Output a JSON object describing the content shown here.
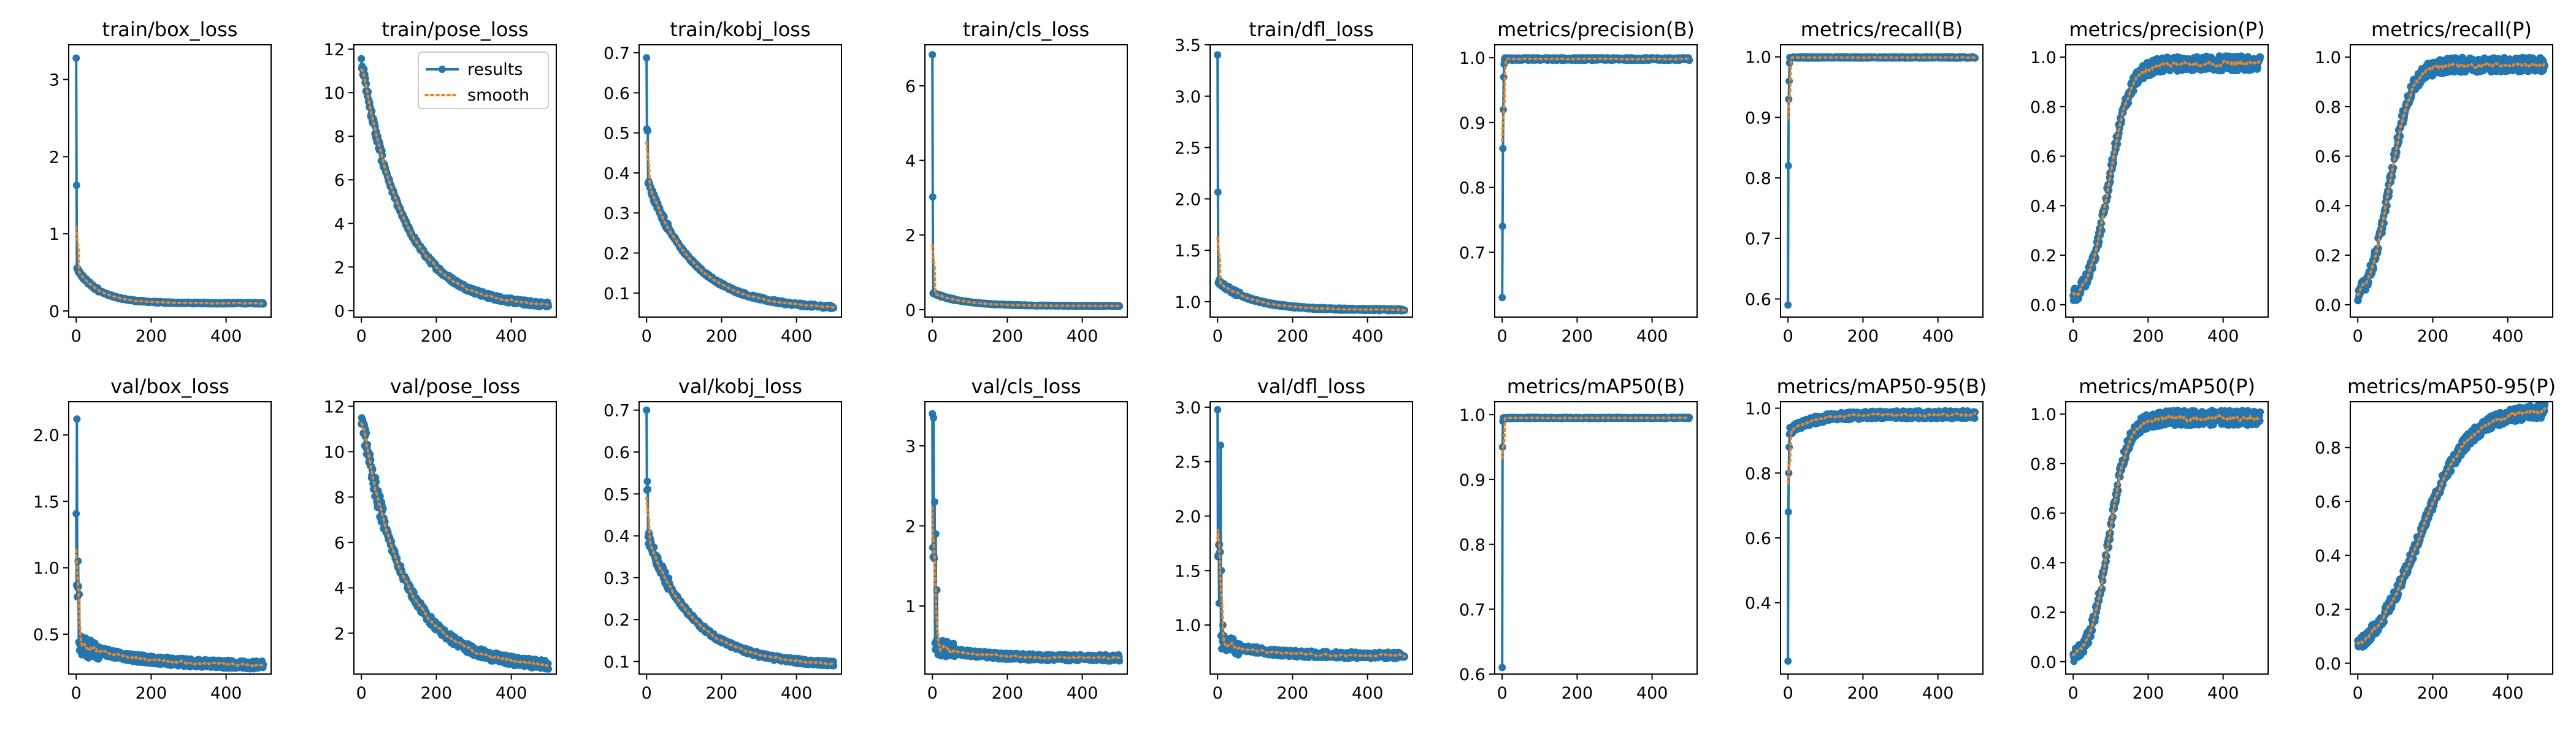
{
  "colors": {
    "results": "#1f77b4",
    "smooth": "#ff7f0e",
    "axis": "#000000",
    "background": "#ffffff"
  },
  "legend": {
    "results_label": "results",
    "smooth_label": "smooth",
    "placement": "upper-right",
    "panel": "train/pose_loss"
  },
  "chart_data": [
    {
      "type": "line",
      "title": "train/box_loss",
      "xlim": [
        -20,
        520
      ],
      "ylim": [
        -0.08,
        3.45
      ],
      "xticks": [
        0,
        200,
        400
      ],
      "yticks": [
        0,
        1,
        2,
        3
      ],
      "curve": {
        "kind": "decay",
        "start": 3.27,
        "spike_until": 1,
        "after": 0.55,
        "end": 0.1,
        "tau": 60,
        "noise": 0.01
      },
      "series": [
        {
          "name": "results"
        },
        {
          "name": "smooth"
        }
      ]
    },
    {
      "type": "line",
      "title": "train/pose_loss",
      "xlim": [
        -20,
        520
      ],
      "ylim": [
        -0.3,
        12.2
      ],
      "xticks": [
        0,
        200,
        400
      ],
      "yticks": [
        0,
        2,
        4,
        6,
        8,
        10,
        12
      ],
      "curve": {
        "kind": "decay",
        "start": 11.5,
        "spike_until": 0,
        "after": 11.5,
        "end": 0.15,
        "tau": 110,
        "noise": 0.12
      },
      "series": [
        {
          "name": "results"
        },
        {
          "name": "smooth"
        }
      ]
    },
    {
      "type": "line",
      "title": "train/kobj_loss",
      "xlim": [
        -20,
        520
      ],
      "ylim": [
        0.04,
        0.72
      ],
      "xticks": [
        0,
        200,
        400
      ],
      "yticks": [
        0.1,
        0.2,
        0.3,
        0.4,
        0.5,
        0.6,
        0.7
      ],
      "curve": {
        "kind": "decay",
        "start": 0.69,
        "spike_until": 3,
        "after": 0.38,
        "end": 0.06,
        "tau": 120,
        "noise": 0.004
      },
      "series": [
        {
          "name": "results"
        },
        {
          "name": "smooth"
        }
      ]
    },
    {
      "type": "line",
      "title": "train/cls_loss",
      "xlim": [
        -20,
        520
      ],
      "ylim": [
        -0.2,
        7.1
      ],
      "xticks": [
        0,
        200,
        400
      ],
      "yticks": [
        0,
        2,
        4,
        6
      ],
      "curve": {
        "kind": "decay",
        "start": 6.85,
        "spike_until": 1,
        "after": 0.45,
        "end": 0.1,
        "tau": 80,
        "noise": 0.01
      },
      "series": [
        {
          "name": "results"
        },
        {
          "name": "smooth"
        }
      ]
    },
    {
      "type": "line",
      "title": "train/dfl_loss",
      "xlim": [
        -20,
        520
      ],
      "ylim": [
        0.85,
        3.5
      ],
      "xticks": [
        0,
        200,
        400
      ],
      "yticks": [
        1.0,
        1.5,
        2.0,
        2.5,
        3.0,
        3.5
      ],
      "curve": {
        "kind": "decay",
        "start": 3.4,
        "spike_until": 1,
        "after": 1.2,
        "end": 0.92,
        "tau": 90,
        "noise": 0.01
      },
      "series": [
        {
          "name": "results"
        },
        {
          "name": "smooth"
        }
      ]
    },
    {
      "type": "line",
      "title": "metrics/precision(B)",
      "xlim": [
        -20,
        520
      ],
      "ylim": [
        0.6,
        1.02
      ],
      "xticks": [
        0,
        200,
        400
      ],
      "yticks": [
        0.7,
        0.8,
        0.9,
        1.0
      ],
      "curve": {
        "kind": "plateau",
        "low": 0.63,
        "level": 0.998,
        "dips": [
          0.63,
          0.74,
          0.86,
          0.92,
          0.97,
          0.99
        ],
        "noise": 0.002
      },
      "series": [
        {
          "name": "results"
        },
        {
          "name": "smooth"
        }
      ]
    },
    {
      "type": "line",
      "title": "metrics/recall(B)",
      "xlim": [
        -20,
        520
      ],
      "ylim": [
        0.57,
        1.02
      ],
      "xticks": [
        0,
        200,
        400
      ],
      "yticks": [
        0.6,
        0.7,
        0.8,
        0.9,
        1.0
      ],
      "curve": {
        "kind": "plateau",
        "low": 0.59,
        "level": 0.999,
        "dips": [
          0.59,
          0.82,
          0.93,
          0.96,
          0.99
        ],
        "noise": 0.001
      },
      "series": [
        {
          "name": "results"
        },
        {
          "name": "smooth"
        }
      ]
    },
    {
      "type": "line",
      "title": "metrics/precision(P)",
      "xlim": [
        -20,
        520
      ],
      "ylim": [
        -0.05,
        1.05
      ],
      "xticks": [
        0,
        200,
        400
      ],
      "yticks": [
        0.0,
        0.2,
        0.4,
        0.6,
        0.8,
        1.0
      ],
      "curve": {
        "kind": "sigmoid",
        "low": 0.0,
        "high": 0.975,
        "mid": 95,
        "width": 28,
        "noise": 0.03
      },
      "series": [
        {
          "name": "results"
        },
        {
          "name": "smooth"
        }
      ]
    },
    {
      "type": "line",
      "title": "metrics/recall(P)",
      "xlim": [
        -20,
        520
      ],
      "ylim": [
        -0.05,
        1.05
      ],
      "xticks": [
        0,
        200,
        400
      ],
      "yticks": [
        0.0,
        0.2,
        0.4,
        0.6,
        0.8,
        1.0
      ],
      "curve": {
        "kind": "sigmoid",
        "low": 0.0,
        "high": 0.97,
        "mid": 85,
        "width": 28,
        "noise": 0.03
      },
      "series": [
        {
          "name": "results"
        },
        {
          "name": "smooth"
        }
      ]
    },
    {
      "type": "line",
      "title": "val/box_loss",
      "xlim": [
        -20,
        520
      ],
      "ylim": [
        0.2,
        2.25
      ],
      "xticks": [
        0,
        200,
        400
      ],
      "yticks": [
        0.5,
        1.0,
        1.5,
        2.0
      ],
      "curve": {
        "kind": "decay",
        "start": 1.4,
        "spike_until": 6,
        "after": 0.42,
        "end": 0.26,
        "tau": 160,
        "noise": 0.03,
        "spikes": [
          [
            2,
            2.12
          ],
          [
            5,
            1.05
          ],
          [
            8,
            0.8
          ]
        ]
      },
      "series": [
        {
          "name": "results"
        },
        {
          "name": "smooth"
        }
      ]
    },
    {
      "type": "line",
      "title": "val/pose_loss",
      "xlim": [
        -20,
        520
      ],
      "ylim": [
        0.2,
        12.2
      ],
      "xticks": [
        0,
        200,
        400
      ],
      "yticks": [
        2,
        4,
        6,
        8,
        10,
        12
      ],
      "curve": {
        "kind": "decay",
        "start": 11.6,
        "spike_until": 0,
        "after": 11.6,
        "end": 0.5,
        "tau": 110,
        "noise": 0.2
      },
      "series": [
        {
          "name": "results"
        },
        {
          "name": "smooth"
        }
      ]
    },
    {
      "type": "line",
      "title": "val/kobj_loss",
      "xlim": [
        -20,
        520
      ],
      "ylim": [
        0.07,
        0.72
      ],
      "xticks": [
        0,
        200,
        400
      ],
      "yticks": [
        0.1,
        0.2,
        0.3,
        0.4,
        0.5,
        0.6,
        0.7
      ],
      "curve": {
        "kind": "decay",
        "start": 0.69,
        "spike_until": 3,
        "after": 0.4,
        "end": 0.09,
        "tau": 120,
        "noise": 0.006
      },
      "series": [
        {
          "name": "results"
        },
        {
          "name": "smooth"
        }
      ]
    },
    {
      "type": "line",
      "title": "val/cls_loss",
      "xlim": [
        -20,
        520
      ],
      "ylim": [
        0.15,
        3.55
      ],
      "xticks": [
        0,
        200,
        400
      ],
      "yticks": [
        1,
        2,
        3
      ],
      "curve": {
        "kind": "decay",
        "start": 3.4,
        "spike_until": 6,
        "after": 0.5,
        "end": 0.35,
        "tau": 100,
        "noise": 0.04,
        "spikes": [
          [
            3,
            3.35
          ],
          [
            6,
            2.3
          ],
          [
            9,
            1.9
          ],
          [
            12,
            1.2
          ]
        ]
      },
      "series": [
        {
          "name": "results"
        },
        {
          "name": "smooth"
        }
      ]
    },
    {
      "type": "line",
      "title": "val/dfl_loss",
      "xlim": [
        -20,
        520
      ],
      "ylim": [
        0.55,
        3.05
      ],
      "xticks": [
        0,
        200,
        400
      ],
      "yticks": [
        1.0,
        1.5,
        2.0,
        2.5,
        3.0
      ],
      "curve": {
        "kind": "decay",
        "start": 2.97,
        "spike_until": 8,
        "after": 0.85,
        "end": 0.72,
        "tau": 100,
        "noise": 0.03,
        "spikes": [
          [
            4,
            1.2
          ],
          [
            8,
            2.65
          ],
          [
            10,
            1.5
          ],
          [
            14,
            1.0
          ]
        ]
      },
      "series": [
        {
          "name": "results"
        },
        {
          "name": "smooth"
        }
      ]
    },
    {
      "type": "line",
      "title": "metrics/mAP50(B)",
      "xlim": [
        -20,
        520
      ],
      "ylim": [
        0.6,
        1.02
      ],
      "xticks": [
        0,
        200,
        400
      ],
      "yticks": [
        0.6,
        0.7,
        0.8,
        0.9,
        1.0
      ],
      "curve": {
        "kind": "plateau",
        "low": 0.61,
        "level": 0.995,
        "dips": [
          0.61,
          0.95,
          0.99
        ],
        "noise": 0.001
      },
      "series": [
        {
          "name": "results"
        },
        {
          "name": "smooth"
        }
      ]
    },
    {
      "type": "line",
      "title": "metrics/mAP50-95(B)",
      "xlim": [
        -20,
        520
      ],
      "ylim": [
        0.18,
        1.02
      ],
      "xticks": [
        0,
        200,
        400
      ],
      "yticks": [
        0.4,
        0.6,
        0.8,
        1.0
      ],
      "curve": {
        "kind": "plateau",
        "low": 0.22,
        "level": 0.98,
        "dips": [
          0.22,
          0.68,
          0.8,
          0.88,
          0.92,
          0.94
        ],
        "noise": 0.012,
        "rise": 0.05
      },
      "series": [
        {
          "name": "results"
        },
        {
          "name": "smooth"
        }
      ]
    },
    {
      "type": "line",
      "title": "metrics/mAP50(P)",
      "xlim": [
        -20,
        520
      ],
      "ylim": [
        -0.05,
        1.05
      ],
      "xticks": [
        0,
        200,
        400
      ],
      "yticks": [
        0.0,
        0.2,
        0.4,
        0.6,
        0.8,
        1.0
      ],
      "curve": {
        "kind": "sigmoid",
        "low": 0.0,
        "high": 0.985,
        "mid": 95,
        "width": 25,
        "noise": 0.03
      },
      "series": [
        {
          "name": "results"
        },
        {
          "name": "smooth"
        }
      ]
    },
    {
      "type": "line",
      "title": "metrics/mAP50-95(P)",
      "xlim": [
        -20,
        520
      ],
      "ylim": [
        -0.04,
        0.97
      ],
      "xticks": [
        0,
        200,
        400
      ],
      "yticks": [
        0.0,
        0.2,
        0.4,
        0.6,
        0.8
      ],
      "curve": {
        "kind": "sigmoid",
        "low": 0.0,
        "high": 0.94,
        "mid": 165,
        "width": 65,
        "noise": 0.025
      },
      "series": [
        {
          "name": "results"
        },
        {
          "name": "smooth"
        }
      ]
    }
  ]
}
